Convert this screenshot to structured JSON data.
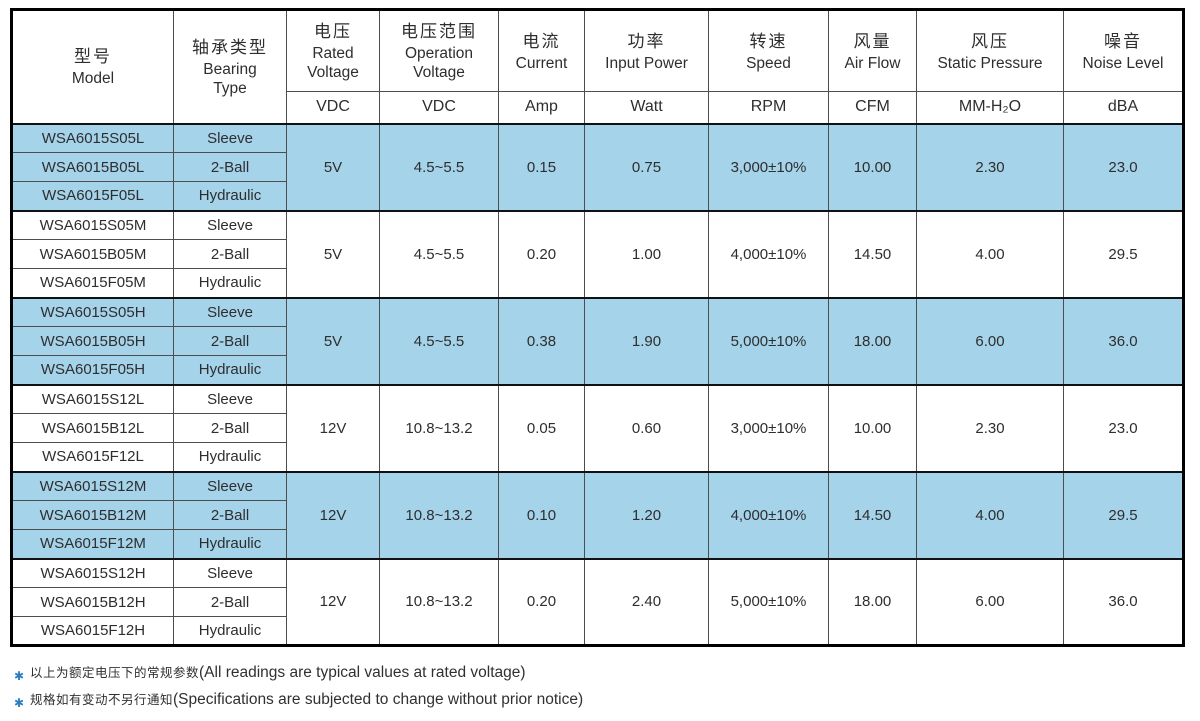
{
  "colors": {
    "highlight_row": "#a5d3ea",
    "border_outer": "#000000",
    "border_inner": "#4d4d4d",
    "footnote_star": "#2a7dc0",
    "text": "#2e2e2e"
  },
  "table": {
    "columns": [
      {
        "zh": "型号",
        "en": "Model",
        "unit": ""
      },
      {
        "zh": "轴承类型",
        "en": "Bearing\nType",
        "unit": ""
      },
      {
        "zh": "电压",
        "en": "Rated\nVoltage",
        "unit": "VDC"
      },
      {
        "zh": "电压范围",
        "en": "Operation\nVoltage",
        "unit": "VDC"
      },
      {
        "zh": "电流",
        "en": "Current",
        "unit": "Amp"
      },
      {
        "zh": "功率",
        "en": "Input Power",
        "unit": "Watt"
      },
      {
        "zh": "转速",
        "en": "Speed",
        "unit": "RPM"
      },
      {
        "zh": "风量",
        "en": "Air Flow",
        "unit": "CFM"
      },
      {
        "zh": "风压",
        "en": "Static Pressure",
        "unit": "MM-H₂O"
      },
      {
        "zh": "噪音",
        "en": "Noise Level",
        "unit": "dBA"
      }
    ],
    "groups": [
      {
        "highlight": true,
        "rows": [
          {
            "model": "WSA6015S05L",
            "bearing": "Sleeve"
          },
          {
            "model": "WSA6015B05L",
            "bearing": "2-Ball"
          },
          {
            "model": "WSA6015F05L",
            "bearing": "Hydraulic"
          }
        ],
        "rated_voltage": "5V",
        "operation_voltage": "4.5~5.5",
        "current": "0.15",
        "input_power": "0.75",
        "speed": "3,000±10%",
        "air_flow": "10.00",
        "static_pressure": "2.30",
        "noise_level": "23.0"
      },
      {
        "highlight": false,
        "rows": [
          {
            "model": "WSA6015S05M",
            "bearing": "Sleeve"
          },
          {
            "model": "WSA6015B05M",
            "bearing": "2-Ball"
          },
          {
            "model": "WSA6015F05M",
            "bearing": "Hydraulic"
          }
        ],
        "rated_voltage": "5V",
        "operation_voltage": "4.5~5.5",
        "current": "0.20",
        "input_power": "1.00",
        "speed": "4,000±10%",
        "air_flow": "14.50",
        "static_pressure": "4.00",
        "noise_level": "29.5"
      },
      {
        "highlight": true,
        "rows": [
          {
            "model": "WSA6015S05H",
            "bearing": "Sleeve"
          },
          {
            "model": "WSA6015B05H",
            "bearing": "2-Ball"
          },
          {
            "model": "WSA6015F05H",
            "bearing": "Hydraulic"
          }
        ],
        "rated_voltage": "5V",
        "operation_voltage": "4.5~5.5",
        "current": "0.38",
        "input_power": "1.90",
        "speed": "5,000±10%",
        "air_flow": "18.00",
        "static_pressure": "6.00",
        "noise_level": "36.0"
      },
      {
        "highlight": false,
        "rows": [
          {
            "model": "WSA6015S12L",
            "bearing": "Sleeve"
          },
          {
            "model": "WSA6015B12L",
            "bearing": "2-Ball"
          },
          {
            "model": "WSA6015F12L",
            "bearing": "Hydraulic"
          }
        ],
        "rated_voltage": "12V",
        "operation_voltage": "10.8~13.2",
        "current": "0.05",
        "input_power": "0.60",
        "speed": "3,000±10%",
        "air_flow": "10.00",
        "static_pressure": "2.30",
        "noise_level": "23.0"
      },
      {
        "highlight": true,
        "rows": [
          {
            "model": "WSA6015S12M",
            "bearing": "Sleeve"
          },
          {
            "model": "WSA6015B12M",
            "bearing": "2-Ball"
          },
          {
            "model": "WSA6015F12M",
            "bearing": "Hydraulic"
          }
        ],
        "rated_voltage": "12V",
        "operation_voltage": "10.8~13.2",
        "current": "0.10",
        "input_power": "1.20",
        "speed": "4,000±10%",
        "air_flow": "14.50",
        "static_pressure": "4.00",
        "noise_level": "29.5"
      },
      {
        "highlight": false,
        "rows": [
          {
            "model": "WSA6015S12H",
            "bearing": "Sleeve"
          },
          {
            "model": "WSA6015B12H",
            "bearing": "2-Ball"
          },
          {
            "model": "WSA6015F12H",
            "bearing": "Hydraulic"
          }
        ],
        "rated_voltage": "12V",
        "operation_voltage": "10.8~13.2",
        "current": "0.20",
        "input_power": "2.40",
        "speed": "5,000±10%",
        "air_flow": "18.00",
        "static_pressure": "6.00",
        "noise_level": "36.0"
      }
    ]
  },
  "footnotes": [
    {
      "star": "✱",
      "zh": "以上为额定电压下的常规参数",
      "en": "(All readings are typical values at rated voltage)"
    },
    {
      "star": "✱",
      "zh": "规格如有变动不另行通知",
      "en": "(Specifications are subjected to change without prior notice)"
    }
  ]
}
